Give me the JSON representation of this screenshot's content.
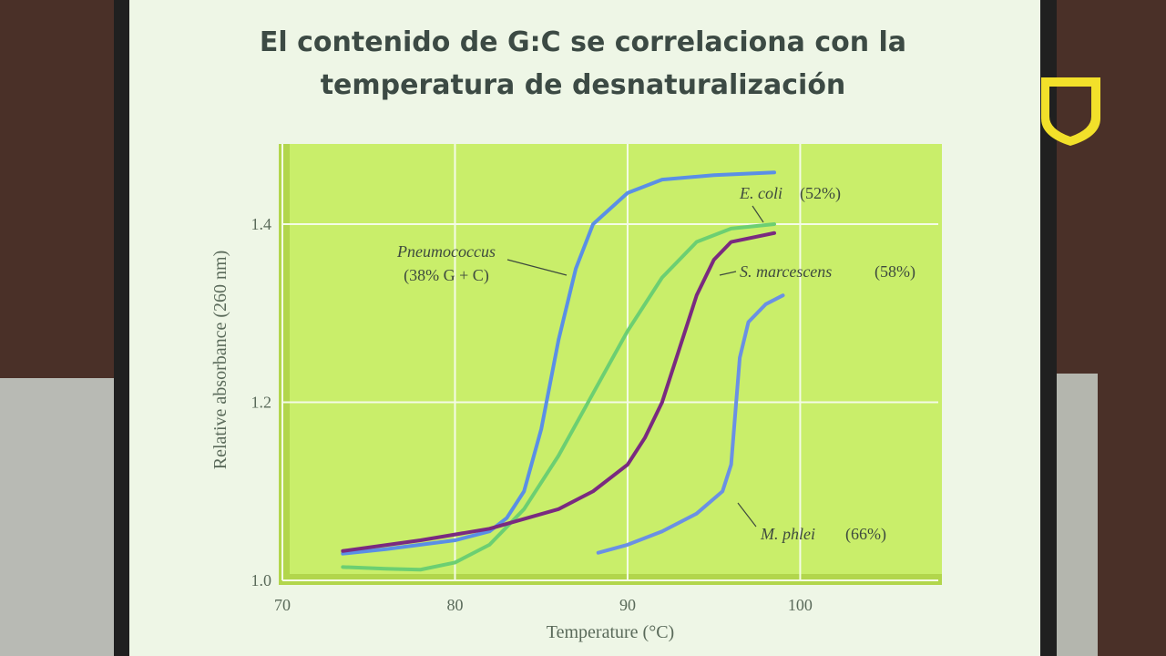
{
  "chart_data": {
    "type": "line",
    "title": [
      "El contenido de G:C se correlaciona con la",
      "temperatura de desnaturalización"
    ],
    "x_label": "Temperature (°C)",
    "y_label": "Relative absorbance (260 nm)",
    "xlim": [
      70,
      108
    ],
    "ylim": [
      1.0,
      1.49
    ],
    "xticks": [
      70,
      80,
      90,
      100
    ],
    "yticks": [
      {
        "value": 1.0,
        "label": "1.0"
      },
      {
        "value": 1.2,
        "label": "1.2"
      },
      {
        "value": 1.4,
        "label": "1.4"
      }
    ],
    "grid": true,
    "series": [
      {
        "name": "Pneumococcus",
        "note": "(38% G + C)",
        "color": "#5a8fe6",
        "x": [
          73.5,
          76,
          78,
          80,
          82,
          83,
          84,
          85,
          86,
          87,
          88,
          90,
          92,
          95,
          98.5
        ],
        "values": [
          1.03,
          1.035,
          1.04,
          1.045,
          1.055,
          1.07,
          1.1,
          1.17,
          1.27,
          1.35,
          1.4,
          1.435,
          1.45,
          1.455,
          1.458
        ]
      },
      {
        "name": "E. coli",
        "note": "(52%)",
        "color": "#6ccf72",
        "x": [
          73.5,
          76,
          78,
          80,
          82,
          84,
          86,
          88,
          90,
          92,
          94,
          96,
          98.5
        ],
        "values": [
          1.015,
          1.013,
          1.012,
          1.02,
          1.04,
          1.08,
          1.14,
          1.21,
          1.28,
          1.34,
          1.38,
          1.395,
          1.4
        ]
      },
      {
        "name": "S. marcescens",
        "note": "(58%)",
        "color": "#7a2a80",
        "x": [
          73.5,
          78,
          82,
          86,
          88,
          90,
          91,
          92,
          93,
          94,
          95,
          96,
          98.5
        ],
        "values": [
          1.033,
          1.045,
          1.058,
          1.08,
          1.1,
          1.13,
          1.16,
          1.2,
          1.26,
          1.32,
          1.36,
          1.38,
          1.39
        ]
      },
      {
        "name": "M. phlei",
        "note": "(66%)",
        "color": "#6a90e4",
        "x": [
          88.3,
          90,
          92,
          94,
          95.5,
          96,
          96.5,
          97,
          98,
          99
        ],
        "values": [
          1.031,
          1.04,
          1.055,
          1.075,
          1.1,
          1.13,
          1.25,
          1.29,
          1.31,
          1.32
        ]
      }
    ]
  }
}
